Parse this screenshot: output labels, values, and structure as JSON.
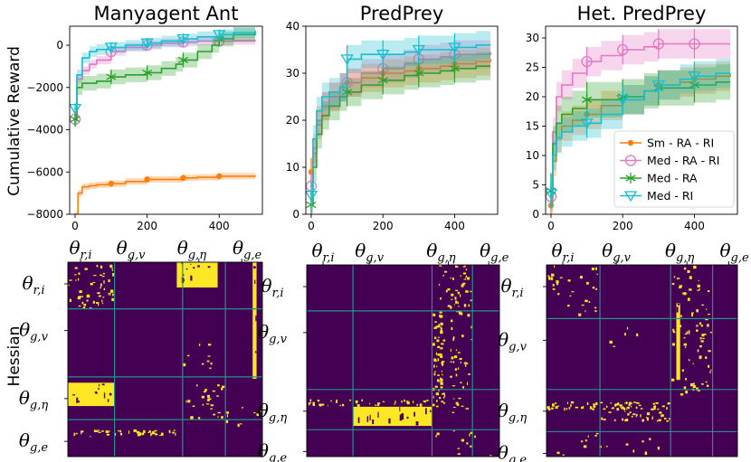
{
  "colors": {
    "sm_ra_ri": "#ff7f0e",
    "med_ra_ri": "#e377c2",
    "med_ra": "#2ca02c",
    "med_ri": "#17becf",
    "heat_bg": "#440154",
    "heat_hi": "#fde725",
    "heat_grid": "#21918c"
  },
  "figure": {
    "row_ylabels": [
      "Cumulative Reward",
      "Hessian"
    ],
    "legend": [
      "Sm - RA - RI",
      "Med - RA - RI",
      "Med - RA",
      "Med - RI"
    ]
  },
  "chart_data": [
    {
      "type": "line",
      "title": "Manyagent Ant",
      "xlabel": "",
      "ylabel": "Cumulative Reward",
      "xlim": [
        -15,
        520
      ],
      "ylim": [
        -8000,
        900
      ],
      "xticks": [
        0,
        200,
        400
      ],
      "yticks": [
        -8000,
        -6000,
        -4000,
        -2000,
        0
      ],
      "series": [
        {
          "name": "Sm - RA - RI",
          "x": [
            0,
            8,
            20,
            40,
            60,
            100,
            140,
            200,
            240,
            300,
            340,
            400,
            440,
            500
          ],
          "y": [
            -8000,
            -7000,
            -6700,
            -6650,
            -6600,
            -6550,
            -6450,
            -6350,
            -6350,
            -6280,
            -6250,
            -6200,
            -6200,
            -6150
          ],
          "band": 150,
          "markers": [
            100,
            200,
            300,
            400
          ]
        },
        {
          "name": "Med - RA - RI",
          "x": [
            0,
            5,
            20,
            40,
            60,
            100,
            140,
            200,
            240,
            300,
            340,
            400,
            440,
            500
          ],
          "y": [
            -3500,
            -1600,
            -1200,
            -900,
            -700,
            -300,
            -100,
            0,
            100,
            150,
            200,
            200,
            220,
            250
          ],
          "band": 200,
          "markers": [
            0,
            100,
            200,
            300,
            400
          ]
        },
        {
          "name": "Med - RA",
          "x": [
            0,
            5,
            20,
            60,
            100,
            140,
            200,
            240,
            280,
            300,
            340,
            380,
            400,
            440,
            500
          ],
          "y": [
            -3500,
            -2000,
            -1800,
            -1700,
            -1500,
            -1400,
            -1300,
            -1100,
            -900,
            -700,
            -300,
            0,
            300,
            500,
            650
          ],
          "band": 350,
          "markers": [
            0,
            100,
            200,
            300,
            400
          ]
        },
        {
          "name": "Med - RI",
          "x": [
            0,
            5,
            20,
            40,
            60,
            100,
            140,
            200,
            240,
            300,
            340,
            400,
            440,
            500
          ],
          "y": [
            -3000,
            -1400,
            -600,
            -300,
            -200,
            -100,
            0,
            100,
            200,
            300,
            400,
            500,
            600,
            700
          ],
          "band": 250,
          "markers": [
            0,
            100,
            200,
            300,
            400
          ]
        }
      ]
    },
    {
      "type": "line",
      "title": "PredPrey",
      "xlabel": "",
      "ylabel": "",
      "xlim": [
        -15,
        520
      ],
      "ylim": [
        0,
        40
      ],
      "xticks": [
        0,
        200,
        400
      ],
      "yticks": [
        0,
        10,
        20,
        30,
        40
      ],
      "series": [
        {
          "name": "Sm - RA - RI",
          "x": [
            0,
            5,
            15,
            30,
            50,
            80,
            100,
            140,
            200,
            260,
            300,
            360,
            400,
            460,
            500
          ],
          "y": [
            9,
            14,
            20,
            23,
            25,
            27,
            28,
            29,
            30,
            30.5,
            31,
            31.5,
            32,
            32.5,
            33
          ],
          "band": 3,
          "markers": [
            0,
            100,
            200,
            300,
            400
          ]
        },
        {
          "name": "Med - RA - RI",
          "x": [
            0,
            5,
            15,
            30,
            50,
            80,
            100,
            140,
            200,
            260,
            300,
            360,
            400,
            460,
            500
          ],
          "y": [
            6,
            13,
            19,
            23,
            25,
            27,
            28,
            30,
            31,
            32,
            33,
            33.5,
            34,
            34,
            34.5
          ],
          "band": 3,
          "markers": [
            0,
            100,
            200,
            300,
            400
          ]
        },
        {
          "name": "Med - RA",
          "x": [
            0,
            5,
            15,
            30,
            50,
            80,
            100,
            140,
            200,
            260,
            300,
            360,
            400,
            460,
            500
          ],
          "y": [
            2,
            10,
            17,
            21,
            23,
            25,
            26,
            27.5,
            28.5,
            29.5,
            30,
            30.5,
            31,
            31.5,
            31.5
          ],
          "band": 3,
          "markers": [
            0,
            100,
            200,
            300,
            400
          ]
        },
        {
          "name": "Med - RI",
          "x": [
            0,
            5,
            15,
            30,
            50,
            80,
            100,
            140,
            200,
            260,
            300,
            360,
            400,
            460,
            500
          ],
          "y": [
            4,
            16,
            22,
            25,
            26,
            27,
            33,
            34,
            34,
            34.5,
            35,
            35,
            35.5,
            36,
            36
          ],
          "band": 3,
          "markers": [
            0,
            100,
            200,
            300,
            400
          ]
        }
      ]
    },
    {
      "type": "line",
      "title": "Het. PredPrey",
      "xlabel": "",
      "ylabel": "",
      "xlim": [
        -15,
        520
      ],
      "ylim": [
        0,
        32
      ],
      "xticks": [
        0,
        200,
        400
      ],
      "yticks": [
        0,
        5,
        10,
        15,
        20,
        25,
        30
      ],
      "series": [
        {
          "name": "Sm - RA - RI",
          "x": [
            0,
            5,
            15,
            30,
            60,
            100,
            140,
            200,
            260,
            300,
            360,
            400,
            460,
            500
          ],
          "y": [
            1.5,
            9,
            13,
            15,
            16,
            17,
            18.5,
            19.5,
            21,
            22,
            22.5,
            23,
            23.5,
            24
          ],
          "band": 2.5,
          "markers": [
            0,
            100,
            200,
            300,
            400
          ]
        },
        {
          "name": "Med - RA - RI",
          "x": [
            0,
            5,
            15,
            30,
            60,
            100,
            140,
            200,
            260,
            300,
            360,
            400,
            460,
            500
          ],
          "y": [
            3,
            14,
            20,
            22,
            24,
            26,
            27,
            28,
            28.5,
            29,
            29,
            29,
            29,
            29
          ],
          "band": 2.5,
          "markers": [
            0,
            100,
            200,
            300,
            400
          ]
        },
        {
          "name": "Med - RA",
          "x": [
            0,
            5,
            15,
            30,
            60,
            100,
            140,
            200,
            260,
            300,
            360,
            400,
            460,
            500
          ],
          "y": [
            4,
            12,
            15.5,
            17,
            18,
            19.5,
            19.5,
            20,
            21,
            21.5,
            21.5,
            22,
            22.5,
            22.5
          ],
          "band": 3,
          "markers": [
            0,
            100,
            200,
            300,
            400
          ]
        },
        {
          "name": "Med - RI",
          "x": [
            0,
            5,
            15,
            30,
            60,
            100,
            140,
            200,
            260,
            300,
            360,
            400,
            460,
            500
          ],
          "y": [
            3.5,
            10,
            13,
            14,
            15,
            15.5,
            17,
            19.5,
            21,
            22,
            23,
            23.5,
            24,
            24
          ],
          "band": 2.5,
          "markers": [
            0,
            100,
            200,
            300,
            400
          ]
        }
      ]
    },
    {
      "type": "heatmap",
      "title": "Manyagent Ant",
      "ylabel": "Hessian",
      "col_labels": [
        "θ_{r,i}",
        "θ_{g,v}",
        "θ_{g,η}",
        "θ_{g,e}"
      ],
      "row_labels": [
        "θ_{r,i}",
        "θ_{g,v}",
        "θ_{g,η}",
        "θ_{g,e}"
      ],
      "block_bounds": [
        0,
        0.24,
        0.59,
        0.81,
        1
      ],
      "bright_blocks": [
        {
          "r": [
            0.0,
            0.13
          ],
          "c": [
            0.56,
            0.77
          ],
          "d": 0.9
        },
        {
          "r": [
            0.62,
            0.74
          ],
          "c": [
            0.0,
            0.24
          ],
          "d": 0.9
        },
        {
          "r": [
            0.0,
            0.24
          ],
          "c": [
            0.0,
            0.24
          ],
          "d": 0.35
        },
        {
          "r": [
            0.62,
            0.81
          ],
          "c": [
            0.59,
            0.81
          ],
          "d": 0.25
        },
        {
          "r": [
            0.4,
            0.55
          ],
          "c": [
            0.59,
            0.75
          ],
          "d": 0.15
        },
        {
          "r": [
            0.86,
            0.9
          ],
          "c": [
            0.0,
            0.59
          ],
          "d": 0.7
        },
        {
          "r": [
            0.0,
            0.6
          ],
          "c": [
            0.95,
            0.97
          ],
          "d": 0.9
        },
        {
          "r": [
            0.72,
            0.85
          ],
          "c": [
            0.81,
            1.0
          ],
          "d": 0.15
        }
      ]
    },
    {
      "type": "heatmap",
      "title": "PredPrey",
      "ylabel": "",
      "col_labels": [
        "θ_{r,i}",
        "θ_{g,v}",
        "θ_{g,η}",
        "θ_{g,e}"
      ],
      "row_labels": [
        "θ_{r,i}",
        "θ_{g,v}",
        "θ_{g,η}",
        "θ_{g,e}"
      ],
      "block_bounds": [
        0,
        0.24,
        0.65,
        0.86,
        1
      ],
      "bright_blocks": [
        {
          "r": [
            0.74,
            0.84
          ],
          "c": [
            0.24,
            0.65
          ],
          "d": 0.95
        },
        {
          "r": [
            0.7,
            0.74
          ],
          "c": [
            0.0,
            0.65
          ],
          "d": 0.6
        },
        {
          "r": [
            0.24,
            0.75
          ],
          "c": [
            0.65,
            0.72
          ],
          "d": 0.8
        },
        {
          "r": [
            0.0,
            0.78
          ],
          "c": [
            0.74,
            0.86
          ],
          "d": 0.25
        },
        {
          "r": [
            0.0,
            0.24
          ],
          "c": [
            0.65,
            0.86
          ],
          "d": 0.2
        },
        {
          "r": [
            0.86,
            1.0
          ],
          "c": [
            0.65,
            1.0
          ],
          "d": 0.1
        }
      ]
    },
    {
      "type": "heatmap",
      "title": "Het. PredPrey",
      "ylabel": "",
      "col_labels": [
        "θ_{r,i}",
        "θ_{g,v}",
        "θ_{g,η}",
        "θ_{g,e}"
      ],
      "row_labels": [
        "θ_{r,i}",
        "θ_{g,v}",
        "θ_{g,η}",
        "θ_{g,e}"
      ],
      "block_bounds": [
        0,
        0.28,
        0.65,
        0.87,
        1
      ],
      "bright_blocks": [
        {
          "r": [
            0.71,
            0.76
          ],
          "c": [
            0.0,
            0.65
          ],
          "d": 0.8
        },
        {
          "r": [
            0.76,
            0.82
          ],
          "c": [
            0.28,
            0.65
          ],
          "d": 0.6
        },
        {
          "r": [
            0.0,
            0.28
          ],
          "c": [
            0.0,
            0.28
          ],
          "d": 0.15
        },
        {
          "r": [
            0.0,
            0.7
          ],
          "c": [
            0.65,
            0.87
          ],
          "d": 0.2
        },
        {
          "r": [
            0.2,
            0.6
          ],
          "c": [
            0.68,
            0.7
          ],
          "d": 0.9
        },
        {
          "r": [
            0.87,
            1.0
          ],
          "c": [
            0.0,
            0.65
          ],
          "d": 0.08
        },
        {
          "r": [
            0.3,
            0.5
          ],
          "c": [
            0.28,
            0.5
          ],
          "d": 0.05
        }
      ]
    }
  ]
}
